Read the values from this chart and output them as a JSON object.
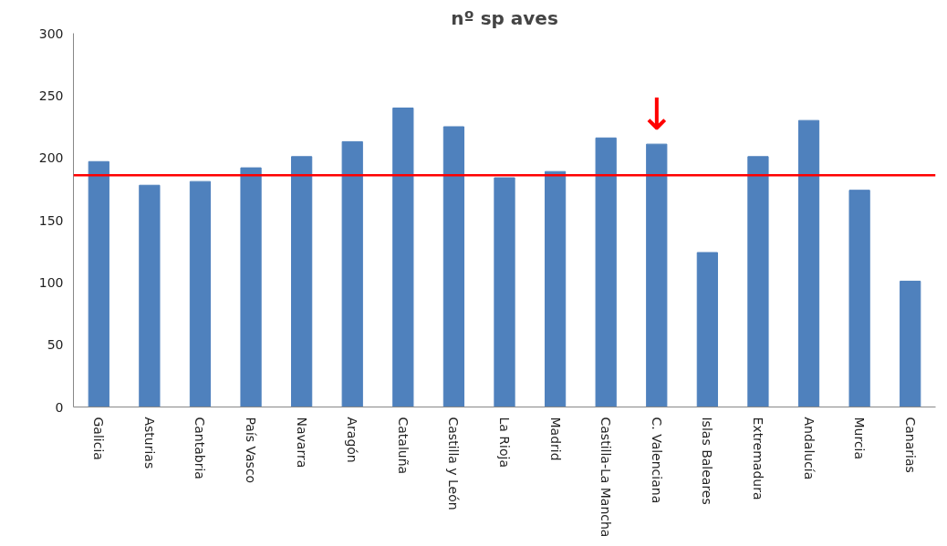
{
  "chart_data": {
    "type": "bar",
    "title": "nº sp aves",
    "categories": [
      "Galicia",
      "Asturias",
      "Cantabria",
      "País Vasco",
      "Navarra",
      "Aragón",
      "Cataluña",
      "Castilla y León",
      "La Rioja",
      "Madrid",
      "Castilla-La Mancha",
      "C. Valenciana",
      "Islas Baleares",
      "Extremadura",
      "Andalucía",
      "Murcia",
      "Canarias"
    ],
    "values": [
      197,
      178,
      181,
      192,
      201,
      213,
      240,
      225,
      184,
      189,
      216,
      211,
      124,
      201,
      230,
      174,
      101
    ],
    "color": "#4f81bd",
    "ylim": [
      0,
      300
    ],
    "yticks": [
      0,
      50,
      100,
      150,
      200,
      250,
      300
    ],
    "grid": false,
    "ref_lines": [
      {
        "axis": "y",
        "value": 186,
        "color": "#ff0000"
      }
    ],
    "annotations": [
      {
        "text": "↓",
        "x": "C. Valenciana",
        "y": 211
      }
    ]
  }
}
